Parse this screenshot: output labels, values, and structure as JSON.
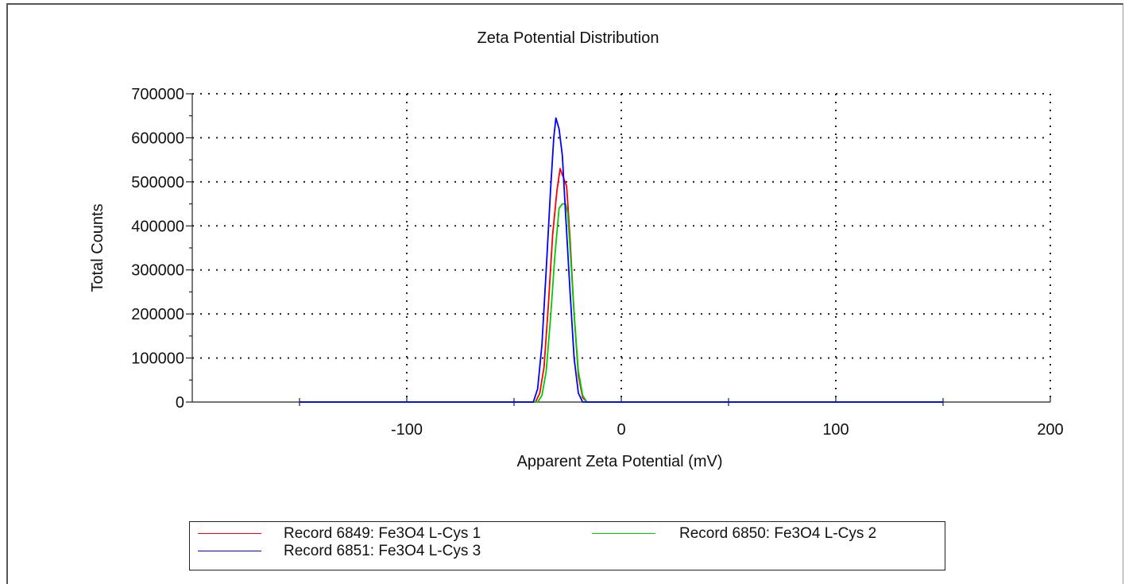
{
  "chart_data": {
    "type": "line",
    "title": "Zeta Potential Distribution",
    "xlabel": "Apparent Zeta Potential (mV)",
    "ylabel": "Total Counts",
    "xlim": [
      -200,
      200
    ],
    "ylim": [
      0,
      700000
    ],
    "xticks": [
      -100,
      0,
      100,
      200
    ],
    "yticks": [
      0,
      100000,
      200000,
      300000,
      400000,
      500000,
      600000,
      700000
    ],
    "grid": true,
    "legend_position": "bottom",
    "series": [
      {
        "name": "Record 6849: Fe3O4 L-Cys 1",
        "color": "#ff0000",
        "x": [
          -150,
          -50,
          -40,
          -38,
          -36,
          -34,
          -32,
          -30,
          -28.5,
          -27,
          -25.5,
          -24,
          -22,
          -20,
          -18,
          -16,
          150
        ],
        "y": [
          0,
          0,
          0,
          20000,
          80000,
          220000,
          380000,
          480000,
          530000,
          510000,
          490000,
          380000,
          200000,
          60000,
          10000,
          0,
          0
        ]
      },
      {
        "name": "Record 6850: Fe3O4 L-Cys 2",
        "color": "#00cc00",
        "x": [
          -150,
          -50,
          -39,
          -37,
          -35,
          -33,
          -31,
          -29,
          -27.5,
          -26,
          -25,
          -24,
          -22,
          -20,
          -18,
          -16,
          150
        ],
        "y": [
          0,
          0,
          0,
          15000,
          70000,
          190000,
          330000,
          440000,
          450000,
          450000,
          430000,
          360000,
          200000,
          70000,
          15000,
          0,
          0
        ]
      },
      {
        "name": "Record 6851: Fe3O4 L-Cys 3",
        "color": "#0000ff",
        "x": [
          -150,
          -50,
          -41,
          -39,
          -37,
          -35,
          -33,
          -31.5,
          -30.5,
          -29,
          -27.5,
          -26,
          -24,
          -22,
          -20,
          -18,
          150
        ],
        "y": [
          0,
          0,
          0,
          30000,
          130000,
          300000,
          480000,
          600000,
          645000,
          620000,
          560000,
          430000,
          260000,
          100000,
          20000,
          0,
          0
        ]
      }
    ]
  }
}
